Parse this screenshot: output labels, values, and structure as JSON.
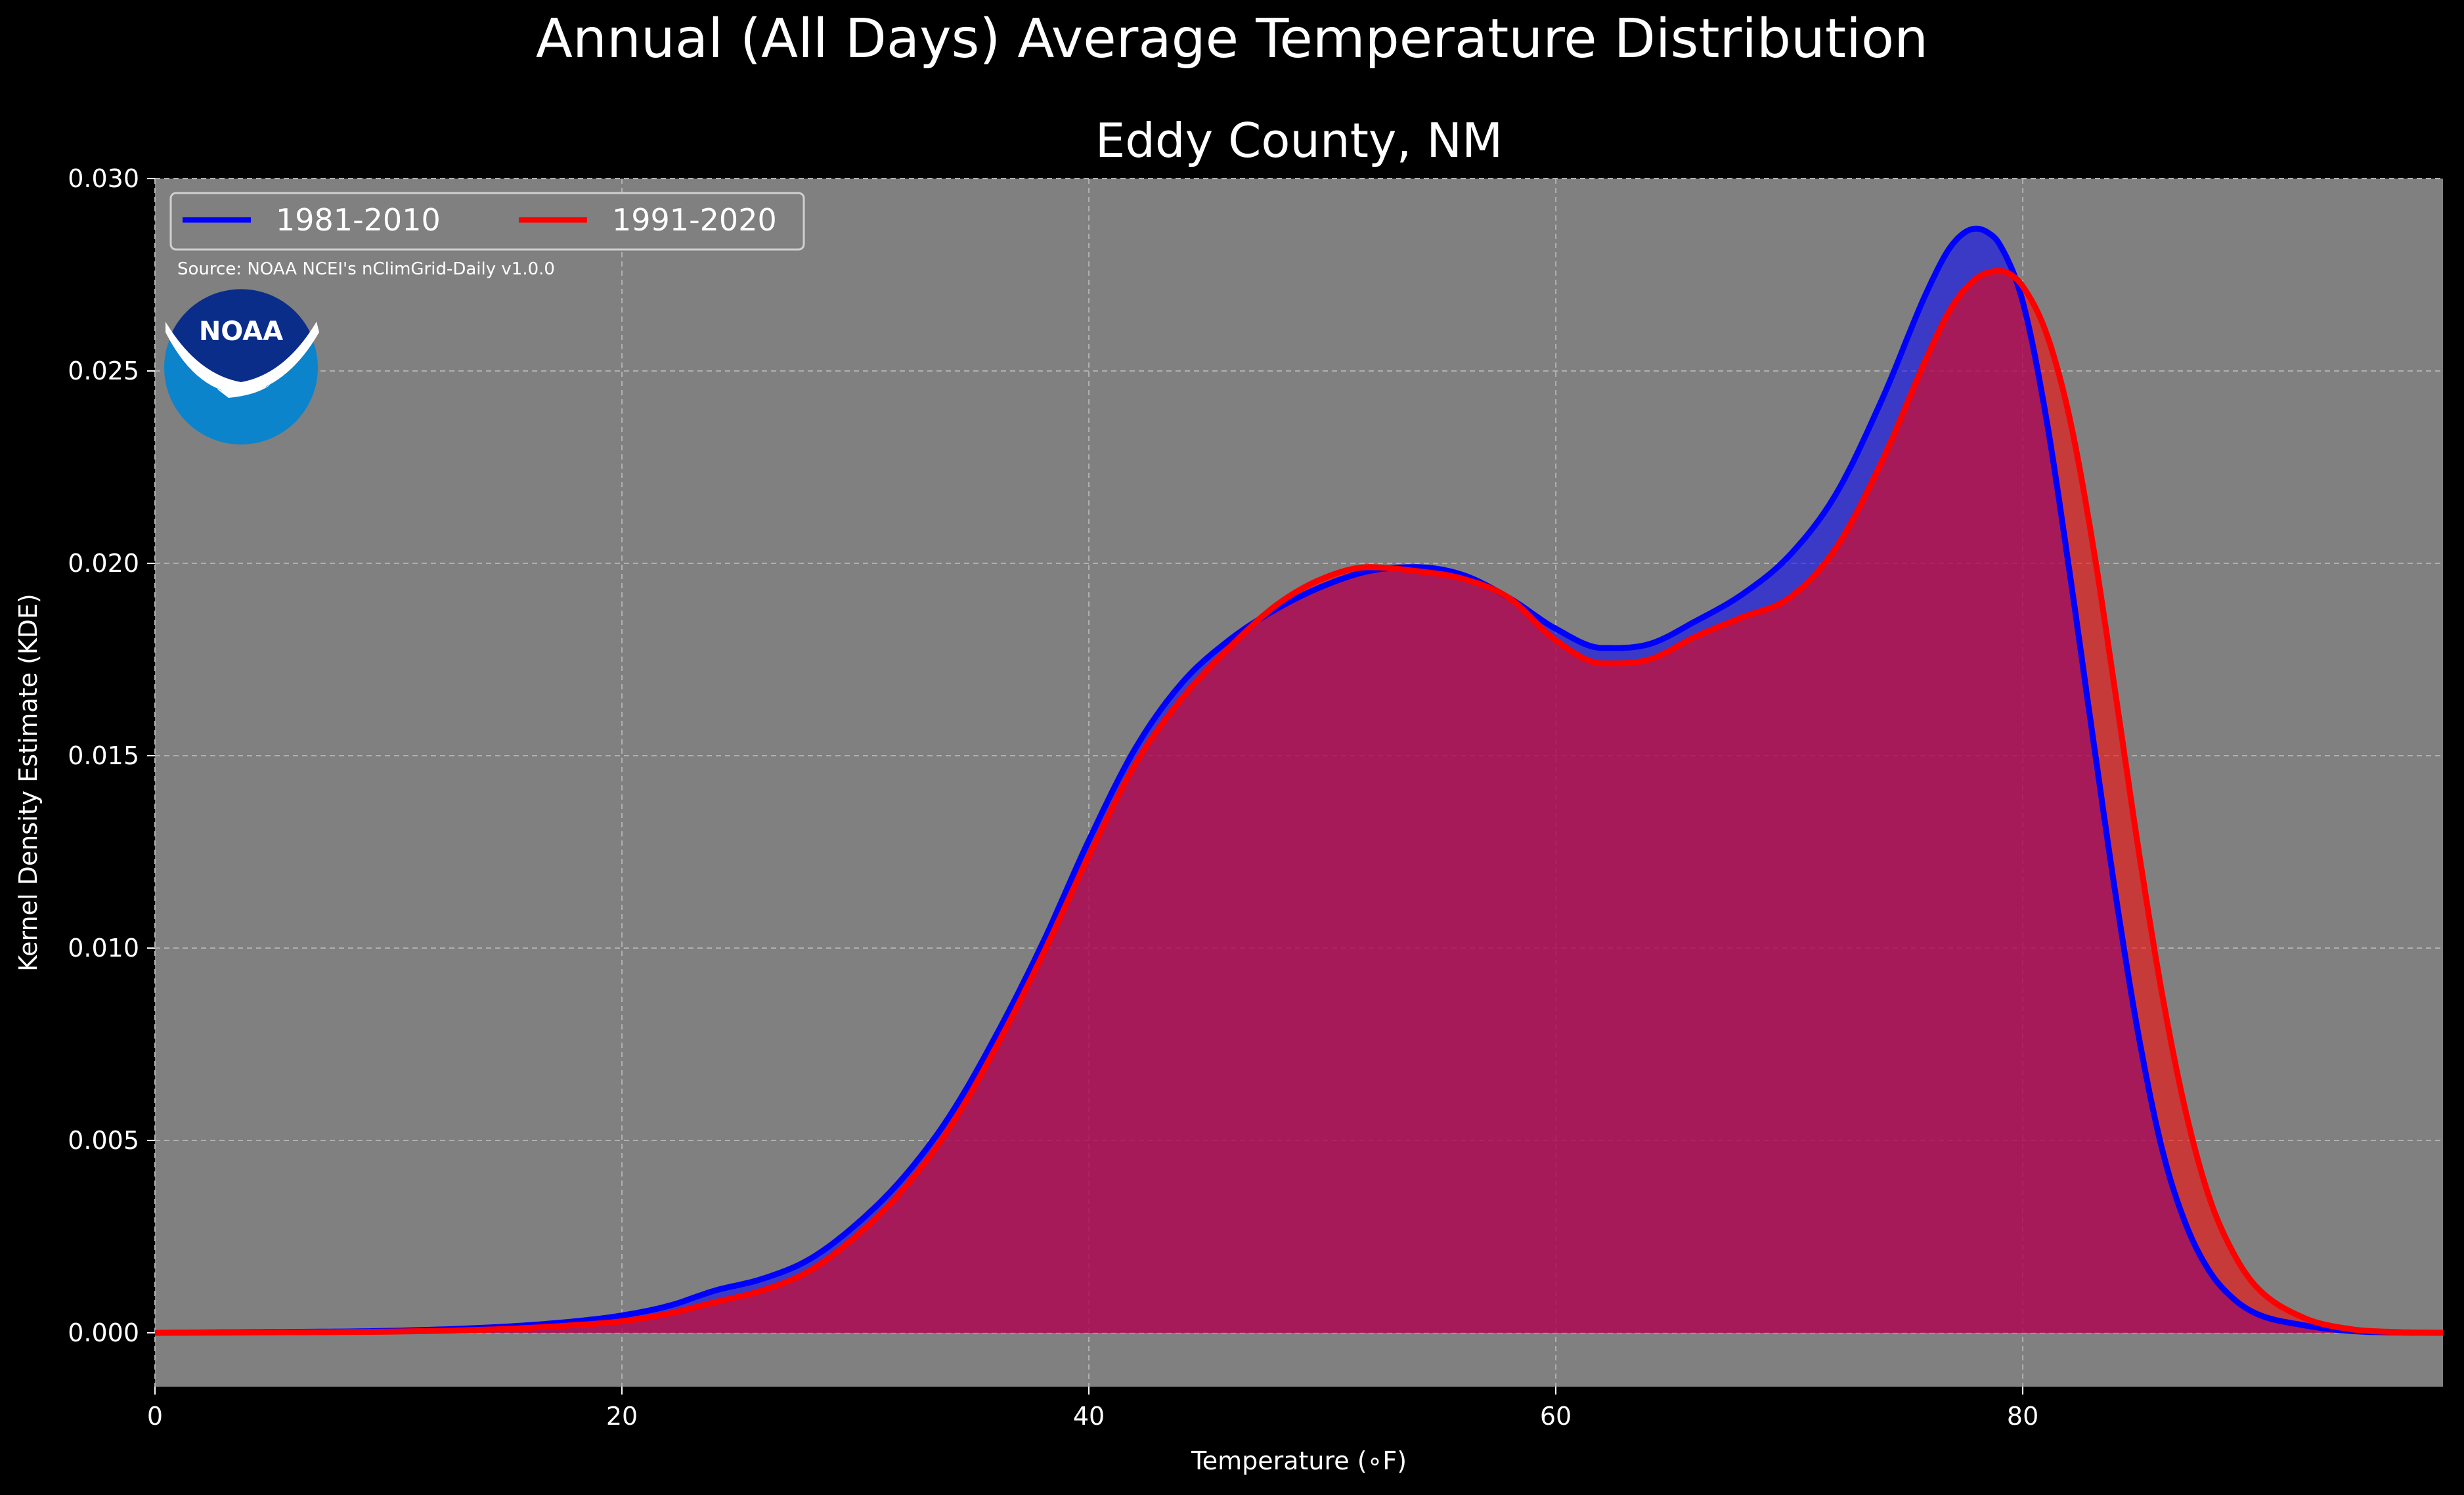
{
  "figure": {
    "suptitle": "Annual (All Days) Average Temperature Distribution",
    "title": "Eddy County, NM",
    "source_note": "Source: NOAA NCEI's nClimGrid-Daily v1.0.0",
    "logo_text": "NOAA"
  },
  "colors": {
    "figure_bg": "#000000",
    "axes_bg": "#808080",
    "series_1981_2010": "#0000ff",
    "series_1991_2020": "#ff0000",
    "overlap_fill": "#9e1f5e",
    "noaa_dark": "#0a2d8a",
    "noaa_light": "#0b84cc"
  },
  "chart_data": {
    "type": "area",
    "title": "Eddy County, NM",
    "xlabel": "Temperature (∘F)",
    "ylabel": "Kernel Density Estimate (KDE)",
    "xlim": [
      0,
      98
    ],
    "ylim": [
      -0.0014,
      0.03
    ],
    "xticks": [
      0,
      20,
      40,
      60,
      80
    ],
    "xtick_labels": [
      "0",
      "20",
      "40",
      "60",
      "80"
    ],
    "yticks": [
      0.0,
      0.005,
      0.01,
      0.015,
      0.02,
      0.025,
      0.03
    ],
    "ytick_labels": [
      "0.000",
      "0.005",
      "0.010",
      "0.015",
      "0.020",
      "0.025",
      "0.030"
    ],
    "grid": true,
    "legend_placement": "upper-left",
    "series": [
      {
        "name": "1981-2010",
        "color": "#0000ff",
        "x": [
          0,
          5,
          10,
          15,
          18,
          20,
          22,
          24,
          26,
          28,
          30,
          32,
          34,
          36,
          38,
          40,
          42,
          44,
          46,
          48,
          50,
          52,
          54,
          56,
          58,
          60,
          62,
          64,
          66,
          68,
          70,
          72,
          74,
          76,
          77,
          78,
          78.5,
          79,
          80,
          81,
          82,
          83,
          84,
          85,
          86,
          87,
          88,
          89,
          90,
          92,
          94,
          96,
          98
        ],
        "y": [
          0.0,
          2e-05,
          5e-05,
          0.00016,
          0.0003,
          0.00045,
          0.0007,
          0.0011,
          0.0014,
          0.0019,
          0.0028,
          0.004,
          0.0056,
          0.0077,
          0.0101,
          0.0128,
          0.0152,
          0.0169,
          0.018,
          0.0188,
          0.0194,
          0.0198,
          0.0199,
          0.0197,
          0.0191,
          0.0183,
          0.0178,
          0.0179,
          0.0185,
          0.0192,
          0.0202,
          0.0218,
          0.0243,
          0.0272,
          0.0283,
          0.0287,
          0.0286,
          0.0283,
          0.0268,
          0.0238,
          0.0198,
          0.0155,
          0.0113,
          0.0076,
          0.0047,
          0.0028,
          0.0016,
          0.0009,
          0.0005,
          0.0002,
          5e-05,
          1e-05,
          0.0
        ]
      },
      {
        "name": "1991-2020",
        "color": "#ff0000",
        "x": [
          0,
          5,
          10,
          15,
          18,
          20,
          22,
          24,
          26,
          28,
          30,
          32,
          34,
          36,
          38,
          40,
          42,
          44,
          46,
          48,
          50,
          52,
          54,
          56,
          58,
          60,
          62,
          64,
          66,
          68,
          70,
          72,
          74,
          76,
          77,
          78,
          79,
          79.5,
          80,
          81,
          82,
          83,
          84,
          85,
          86,
          87,
          88,
          89,
          90,
          92,
          94,
          96,
          98
        ],
        "y": [
          0.0,
          1e-05,
          3e-05,
          0.0001,
          0.0002,
          0.0003,
          0.0005,
          0.0008,
          0.0011,
          0.0016,
          0.0025,
          0.0037,
          0.0053,
          0.0074,
          0.0098,
          0.0124,
          0.0148,
          0.0165,
          0.0178,
          0.0189,
          0.0196,
          0.0199,
          0.0198,
          0.0196,
          0.0191,
          0.018,
          0.0174,
          0.0175,
          0.0181,
          0.0186,
          0.0191,
          0.0204,
          0.0227,
          0.0255,
          0.0267,
          0.0274,
          0.0276,
          0.0275,
          0.0272,
          0.026,
          0.0238,
          0.0205,
          0.0165,
          0.0124,
          0.0087,
          0.0057,
          0.0035,
          0.0021,
          0.0012,
          0.0004,
          0.0001,
          2e-05,
          0.0
        ]
      }
    ]
  }
}
